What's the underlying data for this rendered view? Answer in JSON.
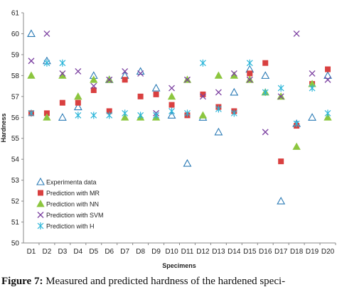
{
  "chart_data": {
    "type": "scatter",
    "title": "",
    "xlabel": "Specimens",
    "ylabel": "Hardness",
    "categories": [
      "D1",
      "D2",
      "D3",
      "D4",
      "D5",
      "D6",
      "D7",
      "D8",
      "D9",
      "D10",
      "D11",
      "D12",
      "D13",
      "D14",
      "D15",
      "D16",
      "D17",
      "D18",
      "D19",
      "D20"
    ],
    "ylim": [
      50,
      61
    ],
    "yticks": [
      50,
      51,
      52,
      53,
      54,
      55,
      56,
      57,
      58,
      59,
      60,
      61
    ],
    "grid": false,
    "legend_position": "bottom-left",
    "series": [
      {
        "name": "Experimenta data",
        "marker": "triangle-open",
        "color": "#2a7ab5",
        "values": [
          60,
          58.7,
          56,
          56.5,
          58,
          57.8,
          58,
          58.2,
          57.4,
          56.1,
          53.8,
          56,
          55.3,
          57.2,
          58.3,
          58,
          52,
          55.7,
          56,
          58
        ]
      },
      {
        "name": "Prediction with MR",
        "marker": "square",
        "color": "#d94040",
        "values": [
          56.2,
          56.2,
          56.7,
          56.7,
          57.3,
          56.3,
          57.8,
          57,
          57.1,
          56.6,
          56.1,
          57.1,
          56.5,
          56.3,
          58.1,
          58.6,
          53.9,
          55.6,
          57.6,
          58.3
        ]
      },
      {
        "name": "Prediction with NN",
        "marker": "triangle",
        "color": "#8cc63f",
        "values": [
          58,
          56,
          58,
          57,
          57.8,
          57.8,
          56,
          56,
          56,
          57,
          57.8,
          56.1,
          58,
          58,
          57.8,
          57.2,
          57,
          54.6,
          57.6,
          56
        ]
      },
      {
        "name": "Prediction with SVM",
        "marker": "x",
        "color": "#7b3fa0",
        "values": [
          58.7,
          60,
          58.1,
          58.2,
          57.5,
          57.8,
          58.2,
          58.1,
          56.2,
          57.4,
          57.8,
          57,
          57.2,
          58.1,
          57.8,
          55.3,
          57,
          60,
          58.1,
          57.8
        ]
      },
      {
        "name": "Prediction with H",
        "marker": "star",
        "color": "#2ab5d9",
        "values": [
          56.2,
          58.6,
          58.6,
          56.1,
          56.1,
          56.1,
          56.2,
          56.1,
          56.1,
          56.3,
          56.2,
          58.6,
          56.4,
          56.2,
          58.6,
          57.2,
          57.4,
          55.7,
          57.4,
          56.2
        ]
      }
    ]
  },
  "caption": {
    "lead": "Figure 7:",
    "text": " Measured and predicted hardness of the hardened speci-"
  }
}
